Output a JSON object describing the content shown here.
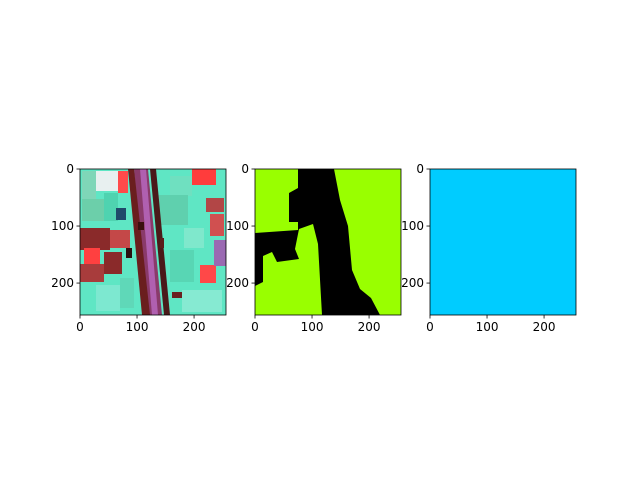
{
  "chart_data": [
    {
      "type": "image",
      "panel": "false-color satellite image",
      "x_ticks": [
        0,
        100,
        200
      ],
      "y_ticks": [
        0,
        100,
        200
      ],
      "xlim": [
        0,
        256
      ],
      "ylim": [
        256,
        0
      ],
      "colors": {
        "field_cyan": "#66f0d0",
        "field_red": "#ff4040",
        "road_purple": "#9a4f8a",
        "dark_red": "#7a1e1e"
      }
    },
    {
      "type": "image",
      "panel": "binary mask",
      "x_ticks": [
        0,
        100,
        200
      ],
      "y_ticks": [
        0,
        100,
        200
      ],
      "xlim": [
        0,
        256
      ],
      "ylim": [
        256,
        0
      ],
      "colors": {
        "foreground": "#99ff00",
        "background": "#000000"
      }
    },
    {
      "type": "image",
      "panel": "uniform prediction",
      "x_ticks": [
        0,
        100,
        200
      ],
      "y_ticks": [
        0,
        100,
        200
      ],
      "xlim": [
        0,
        256
      ],
      "ylim": [
        256,
        0
      ],
      "colors": {
        "fill": "#00ccff"
      }
    }
  ]
}
